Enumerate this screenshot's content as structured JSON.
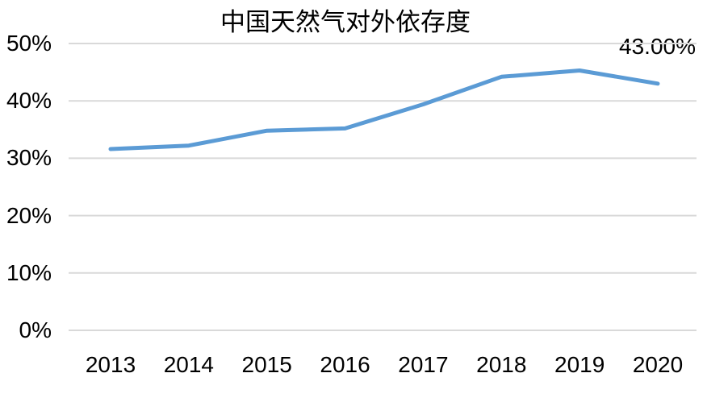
{
  "chart_data": {
    "type": "line",
    "title": "中国天然气对外依存度",
    "categories": [
      "2013",
      "2014",
      "2015",
      "2016",
      "2017",
      "2018",
      "2019",
      "2020"
    ],
    "series": [
      {
        "name": "中国天然气对外依存度",
        "values": [
          31.6,
          32.2,
          34.8,
          35.2,
          39.4,
          44.2,
          45.3,
          43.0
        ]
      }
    ],
    "end_label": "43.00%",
    "xlabel": "",
    "ylabel": "",
    "ylim": [
      0,
      50
    ],
    "ytick_step": 10,
    "ytick_labels": [
      "0%",
      "10%",
      "20%",
      "30%",
      "40%",
      "50%"
    ],
    "grid": true,
    "legend": "none",
    "line_color": "#5B9BD5",
    "gridline_color": "#D9D9D9",
    "background_color": "#FFFFFF",
    "text_color": "#000000"
  }
}
